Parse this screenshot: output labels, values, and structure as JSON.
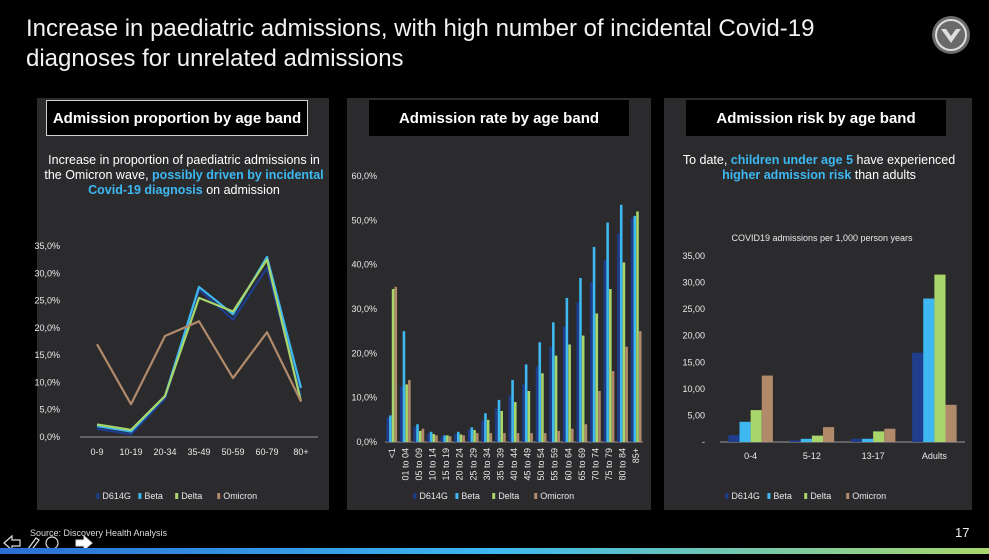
{
  "title": "Increase in paediatric admissions, with high number of incidental Covid-19 diagnoses for unrelated admissions",
  "panels": {
    "proportion": {
      "header": "Admission proportion by age band",
      "note_plain1": "Increase in proportion of paediatric admissions in the Omicron wave, ",
      "note_hl": "possibly driven by incidental Covid-19 diagnosis",
      "note_plain2": " on admission"
    },
    "rate": {
      "header": "Admission rate by age band"
    },
    "risk": {
      "header": "Admission risk by age band",
      "note_plain1": "To date, ",
      "note_hl1": "children under age 5",
      "note_plain2": " have experienced ",
      "note_hl2": "higher admission risk",
      "note_plain3": " than adults"
    }
  },
  "footer": {
    "source": "Source: Discovery Health Analysis",
    "page_number": "17"
  },
  "colors": {
    "D614G": "#1f3d8c",
    "Beta": "#3db8f0",
    "Delta": "#a8d66b",
    "Omicron": "#b08a6a"
  },
  "chart_data": [
    {
      "type": "line",
      "title": "",
      "categories": [
        "0-9",
        "10-19",
        "20-34",
        "35-49",
        "50-59",
        "60-79",
        "80+"
      ],
      "yticks": [
        "0,0%",
        "5,0%",
        "10,0%",
        "15,0%",
        "20,0%",
        "25,0%",
        "30,0%",
        "35,0%"
      ],
      "ylim": [
        0,
        35
      ],
      "series": [
        {
          "name": "D614G",
          "values": [
            1.5,
            0.5,
            7.0,
            27.0,
            21.5,
            31.0,
            7.5
          ]
        },
        {
          "name": "Beta",
          "values": [
            2.0,
            1.0,
            7.5,
            27.5,
            22.5,
            33.0,
            9.0
          ]
        },
        {
          "name": "Delta",
          "values": [
            2.3,
            1.3,
            7.5,
            25.5,
            23.0,
            32.5,
            6.5
          ]
        },
        {
          "name": "Omicron",
          "values": [
            17.0,
            6.0,
            18.5,
            21.2,
            10.8,
            19.2,
            6.5
          ]
        }
      ],
      "legend": [
        "D614G",
        "Beta",
        "Delta",
        "Omicron"
      ]
    },
    {
      "type": "bar",
      "title": "",
      "categories": [
        "<1",
        "01 to 04",
        "05 to 09",
        "10 to 14",
        "15 to 19",
        "20 to 24",
        "25 to 29",
        "30 to 34",
        "35 to 39",
        "40 to 44",
        "45 to 49",
        "50 to 54",
        "55 to 59",
        "60 to 64",
        "65 to 69",
        "70 to 74",
        "75 to 79",
        "80 to 84",
        "85+"
      ],
      "yticks": [
        "0,0%",
        "10,0%",
        "20,0%",
        "30,0%",
        "40,0%",
        "50,0%",
        "60,0%"
      ],
      "ylim": [
        0,
        60
      ],
      "series": [
        {
          "name": "D614G",
          "values": [
            5.5,
            12.5,
            3.5,
            2.0,
            1.3,
            1.8,
            2.8,
            4.8,
            7.5,
            10.5,
            13.0,
            17.0,
            21.5,
            26.0,
            31.5,
            36.0,
            41.0,
            47.0,
            50.5
          ]
        },
        {
          "name": "Beta",
          "values": [
            6.0,
            25.0,
            4.0,
            2.3,
            1.5,
            2.3,
            3.3,
            6.5,
            9.5,
            14.0,
            17.5,
            22.5,
            27.0,
            32.5,
            37.0,
            44.0,
            49.5,
            53.5,
            51.0
          ]
        },
        {
          "name": "Delta",
          "values": [
            34.5,
            13.0,
            2.5,
            1.8,
            1.5,
            1.7,
            2.7,
            5.0,
            7.0,
            9.0,
            11.5,
            15.5,
            19.5,
            22.0,
            24.0,
            29.0,
            34.5,
            40.5,
            52.0
          ]
        },
        {
          "name": "Omicron",
          "values": [
            35.0,
            14.0,
            3.0,
            1.5,
            1.3,
            1.5,
            2.0,
            2.0,
            2.0,
            2.0,
            2.0,
            2.0,
            2.5,
            3.0,
            4.0,
            11.5,
            16.0,
            21.5,
            25.0
          ]
        }
      ],
      "legend": [
        "D614G",
        "Beta",
        "Delta",
        "Omicron"
      ]
    },
    {
      "type": "bar",
      "title": "COVID19 admissions per 1,000 person years",
      "categories": [
        "0-4",
        "5-12",
        "13-17",
        "Adults"
      ],
      "yticks": [
        "-",
        "5,00",
        "10,00",
        "15,00",
        "20,00",
        "25,00",
        "30,00",
        "35,00"
      ],
      "ylim": [
        0,
        35
      ],
      "series": [
        {
          "name": "D614G",
          "values": [
            1.3,
            0.3,
            0.6,
            16.8
          ]
        },
        {
          "name": "Beta",
          "values": [
            3.8,
            0.6,
            0.6,
            27.0
          ]
        },
        {
          "name": "Delta",
          "values": [
            6.0,
            1.2,
            2.0,
            31.5
          ]
        },
        {
          "name": "Omicron",
          "values": [
            12.5,
            2.8,
            2.5,
            7.0
          ]
        }
      ],
      "legend": [
        "D614G",
        "Beta",
        "Delta",
        "Omicron"
      ]
    }
  ]
}
